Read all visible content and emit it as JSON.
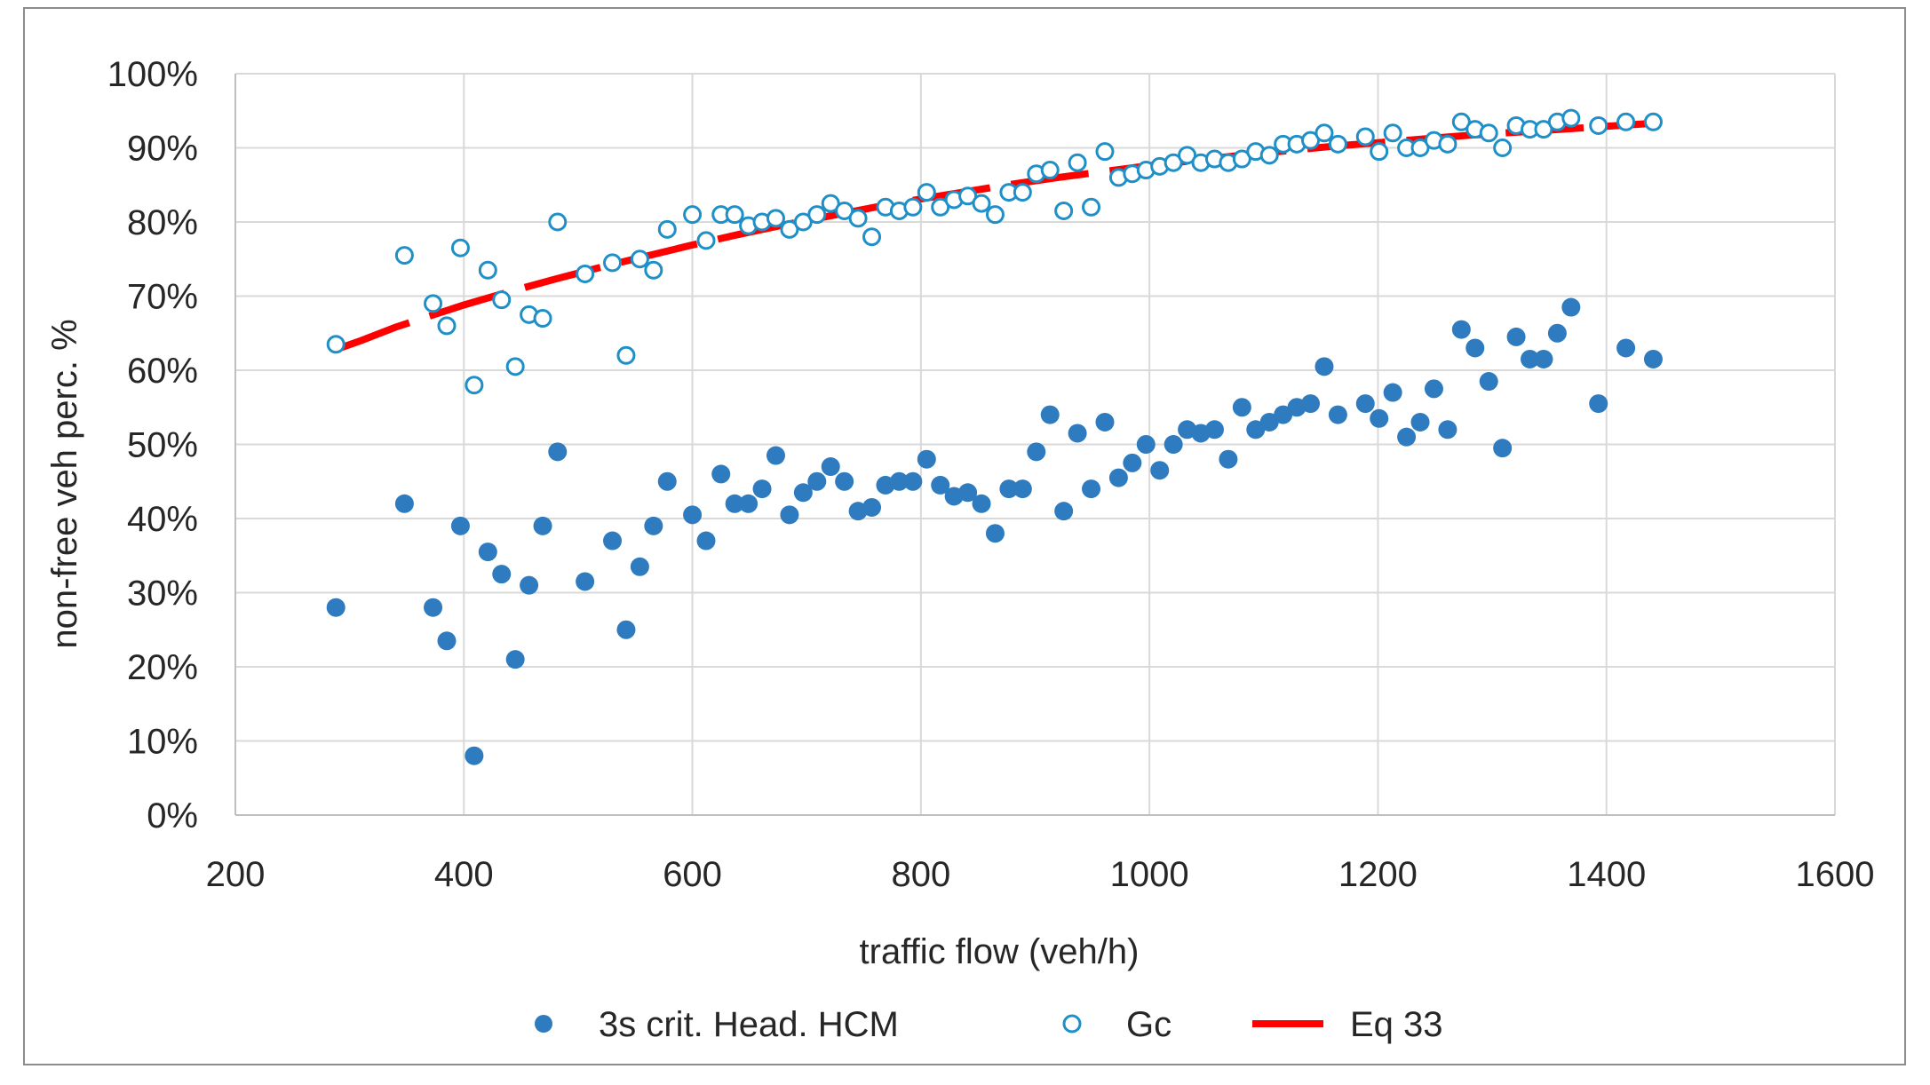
{
  "chart_data": {
    "type": "scatter",
    "title": "",
    "xlabel": "traffic flow (veh/h)",
    "ylabel": "non-free veh perc. %",
    "xlim": [
      200,
      1600
    ],
    "ylim": [
      0,
      100
    ],
    "x_ticks": [
      200,
      400,
      600,
      800,
      1000,
      1200,
      1400,
      1600
    ],
    "y_ticks": [
      0,
      10,
      20,
      30,
      40,
      50,
      60,
      70,
      80,
      90,
      100
    ],
    "x_tick_labels": [
      "200",
      "400",
      "600",
      "800",
      "1000",
      "1200",
      "1400",
      "1600"
    ],
    "y_tick_labels": [
      "0%",
      "10%",
      "20%",
      "30%",
      "40%",
      "50%",
      "60%",
      "70%",
      "80%",
      "90%",
      "100%"
    ],
    "grid": true,
    "legend_position": "bottom",
    "colors": {
      "hcm": "#2e7bbf",
      "gc": "#1f8fc8",
      "eq": "#ff0000",
      "grid": "#d9d9d9",
      "axis": "#bfbfbf"
    },
    "series": [
      {
        "name": "3s crit. Head. HCM",
        "marker": "filled-circle",
        "points": [
          [
            288,
            28
          ],
          [
            348,
            42
          ],
          [
            373,
            28
          ],
          [
            385,
            23.5
          ],
          [
            397,
            39
          ],
          [
            409,
            8
          ],
          [
            421,
            35.5
          ],
          [
            433,
            32.5
          ],
          [
            445,
            21
          ],
          [
            457,
            31
          ],
          [
            469,
            39
          ],
          [
            482,
            49
          ],
          [
            506,
            31.5
          ],
          [
            530,
            37
          ],
          [
            542,
            25
          ],
          [
            554,
            33.5
          ],
          [
            566,
            39
          ],
          [
            578,
            45
          ],
          [
            600,
            40.5
          ],
          [
            612,
            37
          ],
          [
            625,
            46
          ],
          [
            637,
            42
          ],
          [
            649,
            42
          ],
          [
            661,
            44
          ],
          [
            673,
            48.5
          ],
          [
            685,
            40.5
          ],
          [
            697,
            43.5
          ],
          [
            709,
            45
          ],
          [
            721,
            47
          ],
          [
            733,
            45
          ],
          [
            745,
            41
          ],
          [
            757,
            41.5
          ],
          [
            769,
            44.5
          ],
          [
            781,
            45
          ],
          [
            793,
            45
          ],
          [
            805,
            48
          ],
          [
            817,
            44.5
          ],
          [
            829,
            43
          ],
          [
            841,
            43.5
          ],
          [
            853,
            42
          ],
          [
            865,
            38
          ],
          [
            877,
            44
          ],
          [
            889,
            44
          ],
          [
            901,
            49
          ],
          [
            913,
            54
          ],
          [
            925,
            41
          ],
          [
            937,
            51.5
          ],
          [
            949,
            44
          ],
          [
            961,
            53
          ],
          [
            973,
            45.5
          ],
          [
            985,
            47.5
          ],
          [
            997,
            50
          ],
          [
            1009,
            46.5
          ],
          [
            1021,
            50
          ],
          [
            1033,
            52
          ],
          [
            1045,
            51.5
          ],
          [
            1057,
            52
          ],
          [
            1069,
            48
          ],
          [
            1081,
            55
          ],
          [
            1093,
            52
          ],
          [
            1105,
            53
          ],
          [
            1117,
            54
          ],
          [
            1129,
            55
          ],
          [
            1141,
            55.5
          ],
          [
            1153,
            60.5
          ],
          [
            1165,
            54
          ],
          [
            1189,
            55.5
          ],
          [
            1201,
            53.5
          ],
          [
            1213,
            57
          ],
          [
            1225,
            51
          ],
          [
            1237,
            53
          ],
          [
            1249,
            57.5
          ],
          [
            1261,
            52
          ],
          [
            1273,
            65.5
          ],
          [
            1285,
            63
          ],
          [
            1297,
            58.5
          ],
          [
            1309,
            49.5
          ],
          [
            1321,
            64.5
          ],
          [
            1333,
            61.5
          ],
          [
            1345,
            61.5
          ],
          [
            1357,
            65
          ],
          [
            1369,
            68.5
          ],
          [
            1393,
            55.5
          ],
          [
            1417,
            63
          ],
          [
            1441,
            61.5
          ]
        ]
      },
      {
        "name": "Gc",
        "marker": "open-circle",
        "points": [
          [
            288,
            63.5
          ],
          [
            348,
            75.5
          ],
          [
            373,
            69
          ],
          [
            385,
            66
          ],
          [
            397,
            76.5
          ],
          [
            409,
            58
          ],
          [
            421,
            73.5
          ],
          [
            433,
            69.5
          ],
          [
            445,
            60.5
          ],
          [
            457,
            67.5
          ],
          [
            469,
            67
          ],
          [
            482,
            80
          ],
          [
            506,
            73
          ],
          [
            530,
            74.5
          ],
          [
            542,
            62
          ],
          [
            554,
            75
          ],
          [
            566,
            73.5
          ],
          [
            578,
            79
          ],
          [
            600,
            81
          ],
          [
            612,
            77.5
          ],
          [
            625,
            81
          ],
          [
            637,
            81
          ],
          [
            649,
            79.5
          ],
          [
            661,
            80
          ],
          [
            673,
            80.5
          ],
          [
            685,
            79
          ],
          [
            697,
            80
          ],
          [
            709,
            81
          ],
          [
            721,
            82.5
          ],
          [
            733,
            81.5
          ],
          [
            745,
            80.5
          ],
          [
            757,
            78
          ],
          [
            769,
            82
          ],
          [
            781,
            81.5
          ],
          [
            793,
            82
          ],
          [
            805,
            84
          ],
          [
            817,
            82
          ],
          [
            829,
            83
          ],
          [
            841,
            83.5
          ],
          [
            853,
            82.5
          ],
          [
            865,
            81
          ],
          [
            877,
            84
          ],
          [
            889,
            84
          ],
          [
            901,
            86.5
          ],
          [
            913,
            87
          ],
          [
            925,
            81.5
          ],
          [
            937,
            88
          ],
          [
            949,
            82
          ],
          [
            961,
            89.5
          ],
          [
            973,
            86
          ],
          [
            985,
            86.5
          ],
          [
            997,
            87
          ],
          [
            1009,
            87.5
          ],
          [
            1021,
            88
          ],
          [
            1033,
            89
          ],
          [
            1045,
            88
          ],
          [
            1057,
            88.5
          ],
          [
            1069,
            88
          ],
          [
            1081,
            88.5
          ],
          [
            1093,
            89.5
          ],
          [
            1105,
            89
          ],
          [
            1117,
            90.5
          ],
          [
            1129,
            90.5
          ],
          [
            1141,
            91
          ],
          [
            1153,
            92
          ],
          [
            1165,
            90.5
          ],
          [
            1189,
            91.5
          ],
          [
            1201,
            89.5
          ],
          [
            1213,
            92
          ],
          [
            1225,
            90
          ],
          [
            1237,
            90
          ],
          [
            1249,
            91
          ],
          [
            1261,
            90.5
          ],
          [
            1273,
            93.5
          ],
          [
            1285,
            92.5
          ],
          [
            1297,
            92
          ],
          [
            1309,
            90
          ],
          [
            1321,
            93
          ],
          [
            1333,
            92.5
          ],
          [
            1345,
            92.5
          ],
          [
            1357,
            93.5
          ],
          [
            1369,
            94
          ],
          [
            1393,
            93
          ],
          [
            1417,
            93.5
          ],
          [
            1441,
            93.5
          ]
        ]
      },
      {
        "name": "Eq 33",
        "marker": "dashed-line",
        "points": [
          [
            288,
            62.8
          ],
          [
            310,
            64
          ],
          [
            340,
            65.8
          ],
          [
            370,
            67.3
          ],
          [
            400,
            68.8
          ],
          [
            440,
            70.6
          ],
          [
            480,
            72.3
          ],
          [
            520,
            73.9
          ],
          [
            560,
            75.4
          ],
          [
            600,
            76.9
          ],
          [
            640,
            78.3
          ],
          [
            680,
            79.6
          ],
          [
            720,
            80.8
          ],
          [
            760,
            82
          ],
          [
            800,
            83.1
          ],
          [
            840,
            84.1
          ],
          [
            880,
            85.1
          ],
          [
            920,
            86
          ],
          [
            960,
            86.8
          ],
          [
            1000,
            87.6
          ],
          [
            1040,
            88.3
          ],
          [
            1080,
            89
          ],
          [
            1120,
            89.6
          ],
          [
            1160,
            90.2
          ],
          [
            1200,
            90.7
          ],
          [
            1240,
            91.2
          ],
          [
            1280,
            91.7
          ],
          [
            1320,
            92.1
          ],
          [
            1360,
            92.5
          ],
          [
            1400,
            92.9
          ],
          [
            1441,
            93.3
          ]
        ]
      }
    ]
  }
}
